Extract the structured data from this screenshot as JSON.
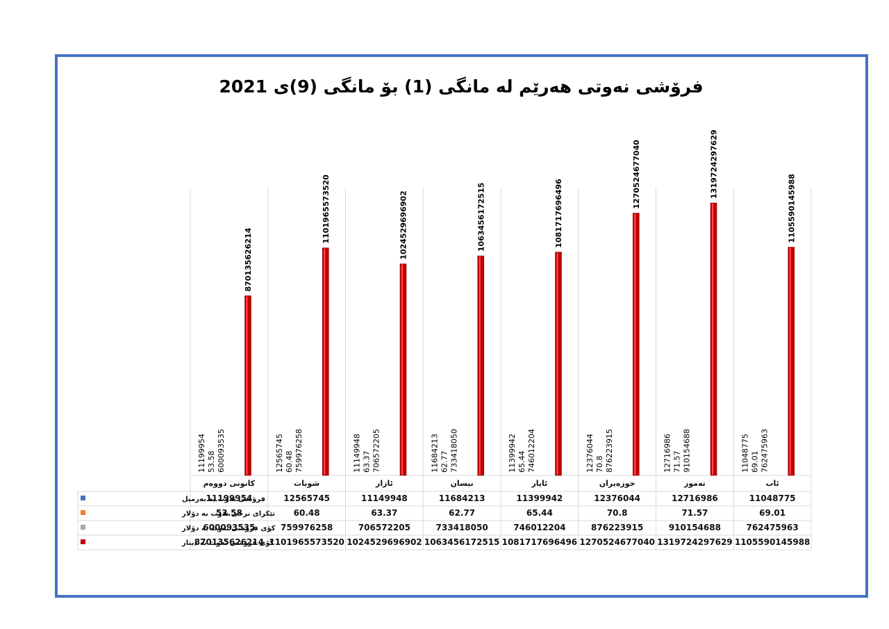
{
  "chart_data": {
    "type": "bar",
    "title": "فرۆشی نەوتی هەرێم لە مانگی (1) بۆ مانگی (9)ی 2021",
    "categories": [
      "كانونى دووەم",
      "شوبات",
      "ئازار",
      "نیسان",
      "ئایار",
      "حوزەیران",
      "تەموز",
      "ئاب"
    ],
    "series": [
      {
        "name": "فرۆشی نەوت بە بەرمیل",
        "color": "#4472c4",
        "values": [
          11199954,
          12565745,
          11149948,
          11684213,
          11399942,
          12376044,
          12716986,
          11048775
        ],
        "labels": [
          "11199954",
          "12565745",
          "11149948",
          "11684213",
          "11399942",
          "12376044",
          "12716986",
          "11048775"
        ]
      },
      {
        "name": "تێكرای نرخی نەوت بە دۆلار",
        "color": "#ed7d31",
        "values": [
          53.58,
          60.48,
          63.37,
          62.77,
          65.44,
          70.8,
          71.57,
          69.01
        ],
        "labels": [
          "53.58",
          "60.48",
          "63.37",
          "62.77",
          "65.44",
          "70.8",
          "71.57",
          "69.01"
        ]
      },
      {
        "name": "كۆی فرۆشی نەوت بە دۆلار",
        "color": "#a5a5a5",
        "values": [
          600093535,
          759976258,
          706572205,
          733418050,
          746012204,
          876223915,
          910154688,
          762475963
        ],
        "labels": [
          "600093535",
          "759976258",
          "706572205",
          "733418050",
          "746012204",
          "876223915",
          "910154688",
          "762475963"
        ]
      },
      {
        "name": "كۆی فرۆشی نەوت بە دینار",
        "color": "#c00000",
        "values": [
          870135626214,
          1101965573520,
          1024529696902,
          1063456172515,
          1081717696496,
          1270524677040,
          1319724297629,
          1105590145988
        ],
        "labels": [
          "870135626214",
          "1101965573520",
          "1024529696902",
          "1063456172515",
          "1081717696496",
          "1270524677040",
          "1319724297629",
          "1105590145988"
        ]
      }
    ],
    "ylim": [
      0,
      1500000000000
    ],
    "grid": true,
    "legend": "data-table"
  }
}
